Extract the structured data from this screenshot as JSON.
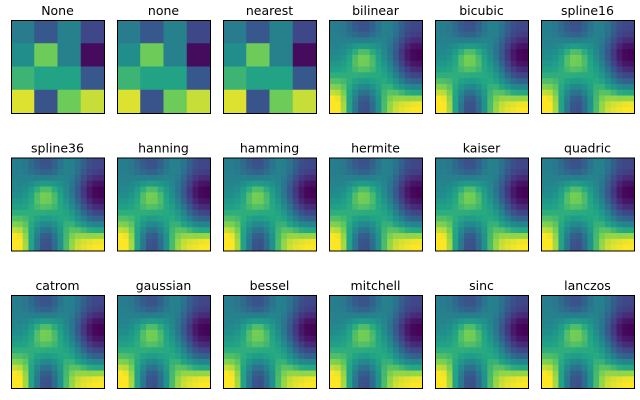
{
  "chart_data": {
    "type": "heatmap",
    "grid": {
      "rows": 3,
      "cols": 6
    },
    "colormap": "viridis",
    "value_range": [
      0,
      1
    ],
    "axes_ticks_visible": false,
    "data": [
      [
        0.52,
        0.35,
        0.55,
        0.27
      ],
      [
        0.62,
        0.86,
        0.55,
        0.04
      ],
      [
        0.79,
        0.73,
        0.73,
        0.35
      ],
      [
        0.97,
        0.33,
        0.86,
        0.95
      ]
    ],
    "panels": [
      {
        "title": "None",
        "smooth": false
      },
      {
        "title": "none",
        "smooth": false
      },
      {
        "title": "nearest",
        "smooth": false
      },
      {
        "title": "bilinear",
        "smooth": true
      },
      {
        "title": "bicubic",
        "smooth": true
      },
      {
        "title": "spline16",
        "smooth": true
      },
      {
        "title": "spline36",
        "smooth": true
      },
      {
        "title": "hanning",
        "smooth": true
      },
      {
        "title": "hamming",
        "smooth": true
      },
      {
        "title": "hermite",
        "smooth": true
      },
      {
        "title": "kaiser",
        "smooth": true
      },
      {
        "title": "quadric",
        "smooth": true
      },
      {
        "title": "catrom",
        "smooth": true
      },
      {
        "title": "gaussian",
        "smooth": true
      },
      {
        "title": "bessel",
        "smooth": true
      },
      {
        "title": "mitchell",
        "smooth": true
      },
      {
        "title": "sinc",
        "smooth": true
      },
      {
        "title": "lanczos",
        "smooth": true
      }
    ]
  }
}
